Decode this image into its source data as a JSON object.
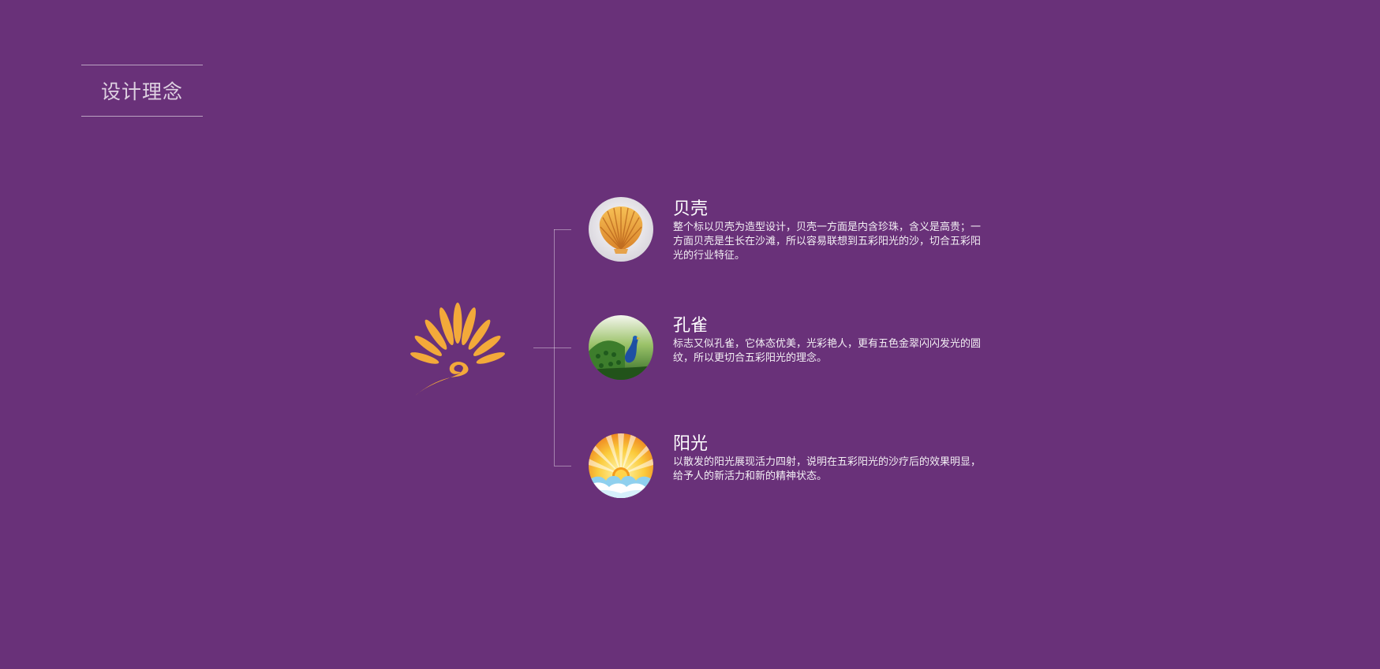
{
  "page": {
    "title": "设计理念",
    "background_color": "#693179"
  },
  "logo": {
    "icon": "shell-peacock-logo-icon",
    "color": "#f3a93a"
  },
  "concepts": [
    {
      "icon": "scallop-shell-icon",
      "title": "贝壳",
      "description": "整个标以贝壳为造型设计，贝壳一方面是内含珍珠，含义是高贵；一方面贝壳是生长在沙滩，所以容易联想到五彩阳光的沙，切合五彩阳光的行业特征。"
    },
    {
      "icon": "peacock-icon",
      "title": "孔雀",
      "description": "标志又似孔雀，它体态优美，光彩艳人，更有五色金翠闪闪发光的圆纹，所以更切合五彩阳光的理念。"
    },
    {
      "icon": "sunrise-icon",
      "title": "阳光",
      "description": "以散发的阳光展现活力四射，说明在五彩阳光的沙疗后的效果明显，给予人的新活力和新的精神状态。"
    }
  ]
}
